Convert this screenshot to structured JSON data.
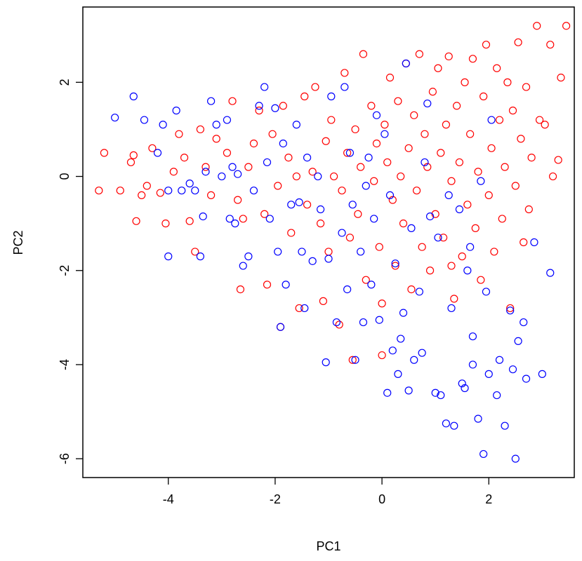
{
  "chart_data": {
    "type": "scatter",
    "title": "",
    "xlabel": "PC1",
    "ylabel": "PC2",
    "xlim": [
      -5.6,
      3.6
    ],
    "ylim": [
      -6.4,
      3.6
    ],
    "xticks": [
      -4,
      -2,
      0,
      2
    ],
    "yticks": [
      -6,
      -4,
      -2,
      0,
      2
    ],
    "grid": false,
    "legend": "none",
    "marker": "open-circle",
    "series": [
      {
        "color": "#ff0000",
        "points": [
          [
            -5.3,
            -0.3
          ],
          [
            -5.2,
            0.5
          ],
          [
            -4.9,
            -0.3
          ],
          [
            -4.7,
            0.3
          ],
          [
            -4.65,
            0.45
          ],
          [
            -4.6,
            -0.95
          ],
          [
            -4.5,
            -0.4
          ],
          [
            -4.4,
            -0.2
          ],
          [
            -4.3,
            0.6
          ],
          [
            -4.15,
            -0.35
          ],
          [
            -4.05,
            -1.0
          ],
          [
            -3.9,
            0.1
          ],
          [
            -3.8,
            0.9
          ],
          [
            -3.7,
            0.4
          ],
          [
            -3.6,
            -0.95
          ],
          [
            -3.5,
            -1.6
          ],
          [
            -3.4,
            1.0
          ],
          [
            -3.3,
            0.2
          ],
          [
            -3.2,
            -0.4
          ],
          [
            -3.1,
            0.8
          ],
          [
            -2.9,
            0.5
          ],
          [
            -2.8,
            1.6
          ],
          [
            -2.7,
            -0.5
          ],
          [
            -2.65,
            -2.4
          ],
          [
            -2.6,
            -0.9
          ],
          [
            -2.5,
            0.2
          ],
          [
            -2.4,
            0.7
          ],
          [
            -2.3,
            1.4
          ],
          [
            -2.2,
            -0.8
          ],
          [
            -2.15,
            -2.3
          ],
          [
            -2.05,
            0.9
          ],
          [
            -1.95,
            -0.2
          ],
          [
            -1.9,
            -3.2
          ],
          [
            -1.85,
            1.5
          ],
          [
            -1.75,
            0.4
          ],
          [
            -1.7,
            -1.2
          ],
          [
            -1.6,
            0.0
          ],
          [
            -1.55,
            -2.8
          ],
          [
            -1.45,
            1.7
          ],
          [
            -1.4,
            -0.6
          ],
          [
            -1.3,
            0.1
          ],
          [
            -1.25,
            1.9
          ],
          [
            -1.15,
            -1.0
          ],
          [
            -1.1,
            -2.65
          ],
          [
            -1.05,
            0.75
          ],
          [
            -1.0,
            -1.6
          ],
          [
            -0.95,
            1.2
          ],
          [
            -0.9,
            0.0
          ],
          [
            -0.8,
            -3.15
          ],
          [
            -0.75,
            -0.3
          ],
          [
            -0.7,
            2.2
          ],
          [
            -0.65,
            0.5
          ],
          [
            -0.6,
            -1.3
          ],
          [
            -0.55,
            -3.9
          ],
          [
            -0.5,
            1.0
          ],
          [
            -0.45,
            -0.8
          ],
          [
            -0.4,
            0.2
          ],
          [
            -0.35,
            2.6
          ],
          [
            -0.3,
            -2.2
          ],
          [
            -0.2,
            1.5
          ],
          [
            -0.15,
            -0.1
          ],
          [
            -0.1,
            0.7
          ],
          [
            -0.05,
            -1.5
          ],
          [
            0.0,
            -2.7
          ],
          [
            0.05,
            1.1
          ],
          [
            0.1,
            0.3
          ],
          [
            0.15,
            2.1
          ],
          [
            0.2,
            -0.5
          ],
          [
            0.25,
            -1.9
          ],
          [
            0.3,
            1.6
          ],
          [
            0.35,
            0.0
          ],
          [
            0.4,
            -1.0
          ],
          [
            0.45,
            2.4
          ],
          [
            0.5,
            0.6
          ],
          [
            0.55,
            -2.4
          ],
          [
            0.6,
            1.3
          ],
          [
            0.65,
            -0.3
          ],
          [
            0.7,
            2.6
          ],
          [
            0.75,
            -1.5
          ],
          [
            0.8,
            0.9
          ],
          [
            0.85,
            0.2
          ],
          [
            0.9,
            -2.0
          ],
          [
            0.95,
            1.8
          ],
          [
            1.0,
            -0.8
          ],
          [
            1.05,
            2.3
          ],
          [
            1.1,
            0.5
          ],
          [
            1.15,
            -1.3
          ],
          [
            1.2,
            1.1
          ],
          [
            1.25,
            2.55
          ],
          [
            1.3,
            -0.1
          ],
          [
            1.35,
            -2.6
          ],
          [
            1.4,
            1.5
          ],
          [
            1.45,
            0.3
          ],
          [
            1.5,
            -1.7
          ],
          [
            1.55,
            2.0
          ],
          [
            1.6,
            -0.6
          ],
          [
            1.65,
            0.9
          ],
          [
            1.7,
            2.5
          ],
          [
            1.75,
            -1.1
          ],
          [
            1.8,
            0.1
          ],
          [
            1.85,
            -2.2
          ],
          [
            1.9,
            1.7
          ],
          [
            1.95,
            2.8
          ],
          [
            2.0,
            -0.4
          ],
          [
            2.05,
            0.6
          ],
          [
            2.1,
            -1.6
          ],
          [
            2.15,
            2.3
          ],
          [
            2.2,
            1.2
          ],
          [
            2.25,
            -0.9
          ],
          [
            2.3,
            0.2
          ],
          [
            2.35,
            2.0
          ],
          [
            2.4,
            -2.8
          ],
          [
            2.45,
            1.4
          ],
          [
            2.5,
            -0.2
          ],
          [
            2.55,
            2.85
          ],
          [
            2.6,
            0.8
          ],
          [
            2.65,
            -1.4
          ],
          [
            2.7,
            1.9
          ],
          [
            2.75,
            -0.7
          ],
          [
            2.8,
            0.4
          ],
          [
            2.9,
            3.2
          ],
          [
            2.95,
            1.2
          ],
          [
            3.05,
            1.1
          ],
          [
            3.15,
            2.8
          ],
          [
            3.2,
            0.0
          ],
          [
            3.3,
            0.35
          ],
          [
            3.35,
            2.1
          ],
          [
            3.45,
            3.2
          ],
          [
            1.3,
            -1.9
          ],
          [
            0.0,
            -3.8
          ]
        ]
      },
      {
        "color": "#0000ff",
        "points": [
          [
            -5.0,
            1.25
          ],
          [
            -4.65,
            1.7
          ],
          [
            -4.45,
            1.2
          ],
          [
            -4.2,
            0.5
          ],
          [
            -4.1,
            1.1
          ],
          [
            -4.0,
            -0.3
          ],
          [
            -4.0,
            -1.7
          ],
          [
            -3.85,
            1.4
          ],
          [
            -3.75,
            -0.3
          ],
          [
            -3.6,
            -0.15
          ],
          [
            -3.5,
            -0.3
          ],
          [
            -3.4,
            -1.7
          ],
          [
            -3.35,
            -0.85
          ],
          [
            -3.3,
            0.1
          ],
          [
            -3.2,
            1.6
          ],
          [
            -3.1,
            1.1
          ],
          [
            -3.0,
            0.0
          ],
          [
            -2.9,
            1.2
          ],
          [
            -2.8,
            0.2
          ],
          [
            -2.75,
            -1.0
          ],
          [
            -2.7,
            0.05
          ],
          [
            -2.6,
            -1.9
          ],
          [
            -2.5,
            -1.7
          ],
          [
            -2.4,
            -0.3
          ],
          [
            -2.3,
            1.5
          ],
          [
            -2.2,
            1.9
          ],
          [
            -2.15,
            0.3
          ],
          [
            -2.1,
            -0.9
          ],
          [
            -2.0,
            1.45
          ],
          [
            -1.95,
            -1.6
          ],
          [
            -1.9,
            -3.2
          ],
          [
            -1.85,
            0.7
          ],
          [
            -1.8,
            -2.3
          ],
          [
            -1.7,
            -0.6
          ],
          [
            -1.6,
            1.1
          ],
          [
            -1.5,
            -1.6
          ],
          [
            -1.45,
            -2.8
          ],
          [
            -1.4,
            0.4
          ],
          [
            -1.3,
            -1.8
          ],
          [
            -1.2,
            0.0
          ],
          [
            -1.15,
            -0.7
          ],
          [
            -1.05,
            -3.95
          ],
          [
            -1.0,
            -1.75
          ],
          [
            -0.95,
            1.7
          ],
          [
            -0.85,
            -3.1
          ],
          [
            -0.75,
            -1.2
          ],
          [
            -0.7,
            1.9
          ],
          [
            -0.65,
            -2.4
          ],
          [
            -0.6,
            0.5
          ],
          [
            -0.55,
            -0.6
          ],
          [
            -0.5,
            -3.9
          ],
          [
            -0.4,
            -1.6
          ],
          [
            -0.35,
            -3.1
          ],
          [
            -0.25,
            0.4
          ],
          [
            -0.2,
            -2.3
          ],
          [
            -0.15,
            -0.9
          ],
          [
            -0.1,
            1.3
          ],
          [
            -0.05,
            -3.05
          ],
          [
            0.05,
            0.9
          ],
          [
            0.1,
            -4.6
          ],
          [
            0.15,
            -0.4
          ],
          [
            0.2,
            -3.7
          ],
          [
            0.25,
            -1.85
          ],
          [
            0.3,
            -4.2
          ],
          [
            0.4,
            -2.9
          ],
          [
            0.45,
            2.4
          ],
          [
            0.5,
            -4.55
          ],
          [
            0.55,
            -1.1
          ],
          [
            0.6,
            -3.9
          ],
          [
            0.7,
            -2.45
          ],
          [
            0.75,
            -3.75
          ],
          [
            0.85,
            1.55
          ],
          [
            0.9,
            -0.85
          ],
          [
            1.0,
            -4.6
          ],
          [
            1.05,
            -1.3
          ],
          [
            1.1,
            -4.65
          ],
          [
            1.2,
            -5.25
          ],
          [
            1.25,
            -0.4
          ],
          [
            1.3,
            -2.8
          ],
          [
            1.35,
            -5.3
          ],
          [
            1.45,
            -0.7
          ],
          [
            1.5,
            -4.4
          ],
          [
            1.55,
            -4.5
          ],
          [
            1.6,
            -2.0
          ],
          [
            1.65,
            -1.5
          ],
          [
            1.7,
            -4.0
          ],
          [
            1.8,
            -5.15
          ],
          [
            1.85,
            -0.1
          ],
          [
            1.9,
            -5.9
          ],
          [
            2.0,
            -4.2
          ],
          [
            2.05,
            1.2
          ],
          [
            2.15,
            -4.65
          ],
          [
            2.2,
            -3.9
          ],
          [
            2.3,
            -5.3
          ],
          [
            2.4,
            -2.85
          ],
          [
            2.5,
            -6.0
          ],
          [
            2.55,
            -3.5
          ],
          [
            2.7,
            -4.3
          ],
          [
            2.85,
            -1.4
          ],
          [
            3.0,
            -4.2
          ],
          [
            3.15,
            -2.05
          ],
          [
            2.65,
            -3.1
          ],
          [
            1.7,
            -3.4
          ],
          [
            0.8,
            0.3
          ],
          [
            -0.3,
            -0.2
          ],
          [
            2.45,
            -4.1
          ],
          [
            1.95,
            -2.45
          ],
          [
            0.35,
            -3.45
          ],
          [
            -1.55,
            -0.55
          ],
          [
            -2.85,
            -0.9
          ]
        ]
      }
    ]
  }
}
